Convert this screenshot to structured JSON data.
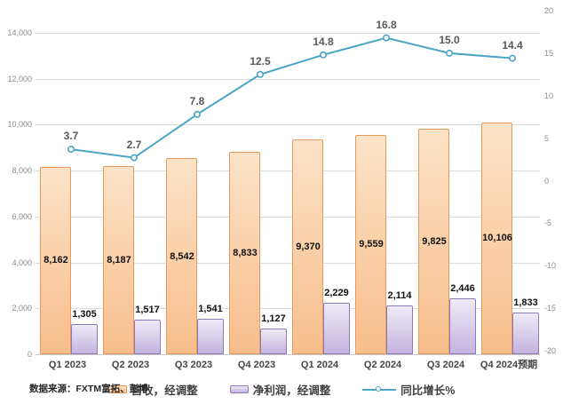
{
  "source_note": "数据来源：FXTM富拓、彭博",
  "colors": {
    "revenue_fill_top": "#fce3c8",
    "revenue_fill_bottom": "#f8be8c",
    "revenue_border": "#e8995b",
    "profit_fill_top": "#efebf7",
    "profit_fill_bottom": "#c3b3df",
    "profit_border": "#8c7bb5",
    "growth_line": "#4ba5c6",
    "gridline": "#dcdcdc",
    "axis_text": "#8c8c8c",
    "line_label_text": "#595959",
    "bar_label_text": "#111111"
  },
  "chart_data": {
    "type": "bar",
    "subtype": "combo-bar-line",
    "categories": [
      "Q1 2023",
      "Q2 2023",
      "Q3 2023",
      "Q4 2023",
      "Q1 2024",
      "Q2 2024",
      "Q3 2024",
      "Q4 2024预期"
    ],
    "series": [
      {
        "name": "营收，经调整",
        "type": "bar",
        "axis": "left",
        "values": [
          8162,
          8187,
          8542,
          8833,
          9370,
          9559,
          9825,
          10106
        ],
        "labels": [
          "8,162",
          "8,187",
          "8,542",
          "8,833",
          "9,370",
          "9,559",
          "9,825",
          "10,106"
        ]
      },
      {
        "name": "净利润，经调整",
        "type": "bar",
        "axis": "left",
        "values": [
          1305,
          1517,
          1541,
          1127,
          2229,
          2114,
          2446,
          1833
        ],
        "labels": [
          "1,305",
          "1,517",
          "1,541",
          "1,127",
          "2,229",
          "2,114",
          "2,446",
          "1,833"
        ]
      },
      {
        "name": "同比增长%",
        "type": "line",
        "axis": "right",
        "values": [
          3.7,
          2.7,
          7.8,
          12.5,
          14.8,
          16.8,
          15.0,
          14.4
        ],
        "labels": [
          "3.7",
          "2.7",
          "7.8",
          "12.5",
          "14.8",
          "16.8",
          "15.0",
          "14.4"
        ]
      }
    ],
    "left_axis": {
      "min": 0,
      "max": 14000,
      "step": 2000,
      "tick_labels_top_down": [
        "14,000",
        "12,000",
        "10,000",
        "8,000",
        "6,000",
        "4,000",
        "2,000",
        "0"
      ]
    },
    "right_axis": {
      "min": -20,
      "max": 20,
      "step": 5,
      "tick_labels_top_down": [
        "20",
        "15",
        "10",
        "5",
        "0",
        "-5",
        "-10",
        "-15",
        "-20"
      ]
    },
    "grid": true,
    "legend_position": "bottom",
    "title": ""
  }
}
